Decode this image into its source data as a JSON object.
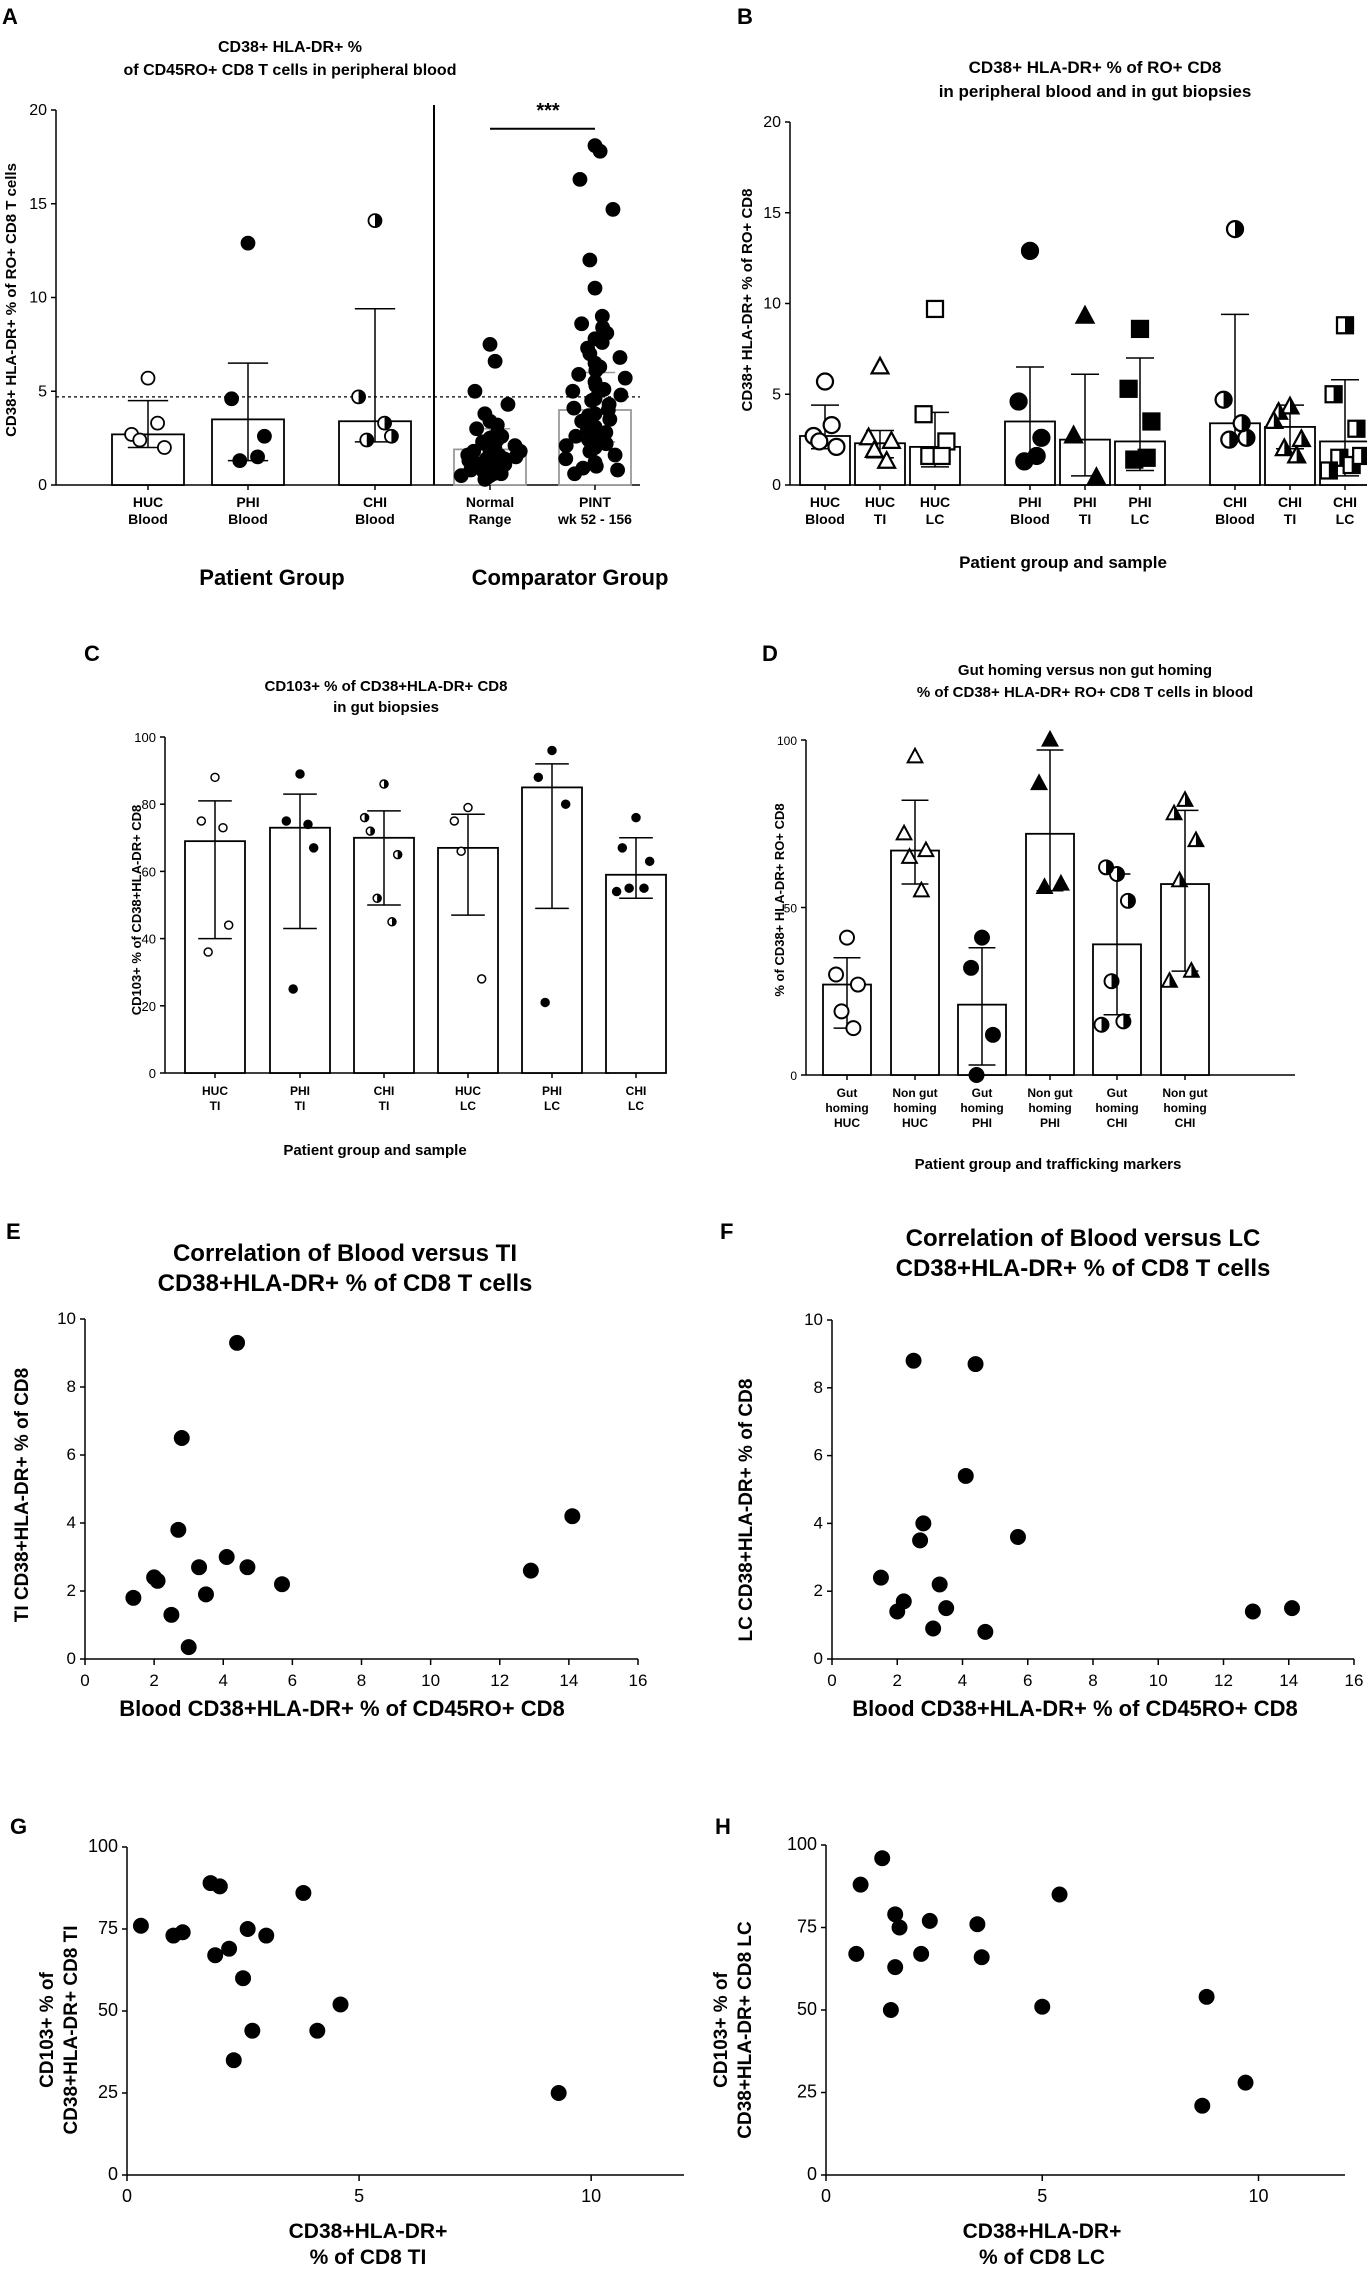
{
  "panels": {
    "A": {
      "letter": "A",
      "title_lines": [
        "CD38+ HLA-DR+ %",
        "of CD45RO+ CD8  T cells in peripheral blood"
      ],
      "ylabel": "CD38+ HLA-DR+ % of RO+ CD8  T cells",
      "sig": "***",
      "group_labels": [
        "Patient Group",
        "Comparator Group"
      ]
    },
    "B": {
      "letter": "B",
      "title_lines": [
        "CD38+ HLA-DR+ % of RO+ CD8",
        "in peripheral blood and in gut biopsies"
      ],
      "ylabel": "CD38+ HLA-DR+ % of RO+ CD8",
      "xlabel": "Patient group and sample"
    },
    "C": {
      "letter": "C",
      "title_lines": [
        "CD103+ % of CD38+HLA-DR+ CD8",
        "in gut biopsies"
      ],
      "ylabel": "CD103+ % of CD38+HLA-DR+ CD8",
      "xlabel": "Patient group and sample"
    },
    "D": {
      "letter": "D",
      "title_lines": [
        "Gut homing versus non gut homing",
        "% of CD38+ HLA-DR+ RO+ CD8 T cells in blood"
      ],
      "ylabel": "% of CD38+ HLA-DR+ RO+ CD8",
      "xlabel": "Patient group and trafficking markers"
    },
    "E": {
      "letter": "E",
      "title_lines": [
        "Correlation of Blood versus TI",
        "CD38+HLA-DR+ % of CD8  T cells"
      ],
      "ylabel": "TI CD38+HLA-DR+ % of CD8",
      "xlabel_lines": [
        "Blood CD38+HLA-DR+ % of CD45RO+ CD8"
      ]
    },
    "F": {
      "letter": "F",
      "title_lines": [
        "Correlation of Blood versus LC",
        "CD38+HLA-DR+ % of CD8  T cells"
      ],
      "ylabel": "LC CD38+HLA-DR+ % of CD8",
      "xlabel_lines": [
        "Blood CD38+HLA-DR+ % of CD45RO+ CD8"
      ]
    },
    "G": {
      "letter": "G",
      "ylabel_lines": [
        "CD103+ % of",
        "CD38+HLA-DR+ CD8 TI"
      ],
      "xlabel_lines": [
        "CD38+HLA-DR+",
        "% of CD8 TI"
      ]
    },
    "H": {
      "letter": "H",
      "ylabel_lines": [
        "CD103+ % of",
        "CD38+HLA-DR+ CD8 LC"
      ],
      "xlabel_lines": [
        "CD38+HLA-DR+",
        "% of CD8 LC"
      ]
    }
  },
  "chart_data": [
    {
      "id": "A",
      "type": "bar",
      "ylim": [
        0,
        20
      ],
      "yticks": [
        0,
        5,
        10,
        15,
        20
      ],
      "reference_line": 4.7,
      "categories": [
        [
          "HUC",
          "Blood"
        ],
        [
          "PHI",
          "Blood"
        ],
        [
          "CHI",
          "Blood"
        ],
        [
          "Normal",
          "Range"
        ],
        [
          "PINT",
          "wk 52 - 156"
        ]
      ],
      "bars": [
        {
          "mean": 2.7,
          "sd_low": 2.0,
          "sd_high": 4.5,
          "marker": "open-circle",
          "points": [
            5.7,
            2.7,
            2.0,
            2.4,
            3.3
          ]
        },
        {
          "mean": 3.5,
          "sd_low": 1.3,
          "sd_high": 6.5,
          "marker": "filled-circle",
          "points": [
            12.9,
            4.6,
            2.6,
            1.3,
            1.5
          ]
        },
        {
          "mean": 3.4,
          "sd_low": 2.3,
          "sd_high": 9.4,
          "marker": "half-circle",
          "points": [
            14.1,
            4.7,
            2.6,
            2.4,
            3.3
          ]
        },
        {
          "mean": 1.9,
          "sd_low": 1.0,
          "sd_high": 3.0,
          "marker": "filled-circle",
          "grey_bar": true,
          "points": [
            7.5,
            6.6,
            5.0,
            4.3,
            3.8,
            3.4,
            3.2,
            3.0,
            2.8,
            2.6,
            2.5,
            2.4,
            2.3,
            2.2,
            2.1,
            2.0,
            2.0,
            1.9,
            1.8,
            1.8,
            1.7,
            1.7,
            1.6,
            1.6,
            1.5,
            1.5,
            1.4,
            1.4,
            1.3,
            1.3,
            1.2,
            1.2,
            1.1,
            1.1,
            1.0,
            1.0,
            0.9,
            0.9,
            0.8,
            0.8,
            0.7,
            0.7,
            0.6,
            0.6,
            0.5,
            0.5,
            0.4,
            0.3
          ]
        },
        {
          "mean": 4.0,
          "sd_low": 2.3,
          "sd_high": 6.0,
          "marker": "filled-circle",
          "grey_bar": true,
          "points": [
            18.1,
            17.8,
            16.3,
            14.7,
            12.0,
            10.5,
            9.0,
            8.6,
            8.4,
            8.1,
            7.8,
            7.6,
            7.3,
            7.0,
            6.8,
            6.5,
            6.3,
            6.1,
            5.9,
            5.7,
            5.5,
            5.3,
            5.1,
            5.0,
            4.8,
            4.6,
            4.5,
            4.3,
            4.1,
            4.0,
            3.8,
            3.7,
            3.5,
            3.4,
            3.2,
            3.1,
            3.0,
            2.8,
            2.7,
            2.6,
            2.5,
            2.4,
            2.3,
            2.2,
            2.1,
            2.0,
            1.9,
            1.8,
            1.6,
            1.4,
            1.2,
            1.0,
            0.9,
            0.8,
            0.6
          ]
        }
      ]
    },
    {
      "id": "B",
      "type": "bar",
      "ylim": [
        0,
        20
      ],
      "yticks": [
        0,
        5,
        10,
        15,
        20
      ],
      "categories": [
        [
          "HUC",
          "Blood"
        ],
        [
          "HUC",
          "TI"
        ],
        [
          "HUC",
          "LC"
        ],
        [
          "PHI",
          "Blood"
        ],
        [
          "PHI",
          "TI"
        ],
        [
          "PHI",
          "LC"
        ],
        [
          "CHI",
          "Blood"
        ],
        [
          "CHI",
          "TI"
        ],
        [
          "CHI",
          "LC"
        ]
      ],
      "bars": [
        {
          "mean": 2.7,
          "sd_low": 2.0,
          "sd_high": 4.4,
          "marker": "open-circle",
          "points": [
            5.7,
            2.7,
            2.1,
            2.4,
            3.3
          ]
        },
        {
          "mean": 2.3,
          "sd_low": 1.5,
          "sd_high": 3.0,
          "marker": "open-triangle",
          "points": [
            6.5,
            2.6,
            2.4,
            1.9,
            1.3
          ]
        },
        {
          "mean": 2.1,
          "sd_low": 1.0,
          "sd_high": 4.0,
          "marker": "open-square",
          "points": [
            9.7,
            3.9,
            2.4,
            1.6,
            1.6
          ]
        },
        {
          "mean": 3.5,
          "sd_low": 1.3,
          "sd_high": 6.5,
          "marker": "filled-circle",
          "points": [
            12.9,
            4.6,
            2.6,
            1.3,
            1.6
          ]
        },
        {
          "mean": 2.5,
          "sd_low": 0.5,
          "sd_high": 6.1,
          "marker": "filled-triangle",
          "points": [
            9.3,
            2.7,
            0.4
          ]
        },
        {
          "mean": 2.4,
          "sd_low": 0.8,
          "sd_high": 7.0,
          "marker": "filled-square",
          "points": [
            8.6,
            5.3,
            3.5,
            1.4,
            1.5
          ]
        },
        {
          "mean": 3.4,
          "sd_low": 2.5,
          "sd_high": 9.4,
          "marker": "half-circle",
          "points": [
            14.1,
            4.7,
            2.6,
            2.5,
            3.4
          ]
        },
        {
          "mean": 3.2,
          "sd_low": 2.0,
          "sd_high": 4.4,
          "marker": "half-triangle",
          "points": [
            4.3,
            4.0,
            2.5,
            2.0,
            1.6,
            3.5
          ]
        },
        {
          "mean": 2.4,
          "sd_low": 0.5,
          "sd_high": 5.8,
          "marker": "half-square",
          "points": [
            8.8,
            5.0,
            3.1,
            1.5,
            1.1,
            0.8,
            1.6
          ]
        }
      ]
    },
    {
      "id": "C",
      "type": "bar",
      "ylim": [
        0,
        100
      ],
      "yticks": [
        0,
        20,
        40,
        60,
        80,
        100
      ],
      "categories": [
        [
          "HUC",
          "TI"
        ],
        [
          "PHI",
          "TI"
        ],
        [
          "CHI",
          "TI"
        ],
        [
          "HUC",
          "LC"
        ],
        [
          "PHI",
          "LC"
        ],
        [
          "CHI",
          "LC"
        ]
      ],
      "bars": [
        {
          "mean": 69,
          "sd_low": 40,
          "sd_high": 81,
          "marker": "small-open-circle",
          "points": [
            88,
            75,
            44,
            36,
            73
          ]
        },
        {
          "mean": 73,
          "sd_low": 43,
          "sd_high": 83,
          "marker": "small-filled-circle",
          "points": [
            89,
            75,
            67,
            25,
            74
          ]
        },
        {
          "mean": 70,
          "sd_low": 50,
          "sd_high": 78,
          "marker": "half-circle",
          "points": [
            86,
            72,
            65,
            52,
            45,
            76
          ]
        },
        {
          "mean": 67,
          "sd_low": 47,
          "sd_high": 77,
          "marker": "small-open-circle",
          "points": [
            79,
            75,
            28,
            66
          ]
        },
        {
          "mean": 85,
          "sd_low": 49,
          "sd_high": 92,
          "marker": "small-filled-circle",
          "points": [
            96,
            88,
            80,
            21
          ]
        },
        {
          "mean": 59,
          "sd_low": 52,
          "sd_high": 70,
          "marker": "small-filled-circle",
          "points": [
            76,
            67,
            63,
            55,
            55,
            54
          ]
        }
      ]
    },
    {
      "id": "D",
      "type": "bar",
      "ylim": [
        0,
        100
      ],
      "yticks": [
        0,
        50,
        100
      ],
      "categories": [
        [
          "Gut",
          "homing",
          "HUC"
        ],
        [
          "Non gut",
          "homing",
          "HUC"
        ],
        [
          "Gut",
          "homing",
          "PHI"
        ],
        [
          "Non gut",
          "homing",
          "PHI"
        ],
        [
          "Gut",
          "homing",
          "CHI"
        ],
        [
          "Non gut",
          "homing",
          "CHI"
        ]
      ],
      "bars": [
        {
          "mean": 27,
          "sd_low": 14,
          "sd_high": 35,
          "marker": "open-circle",
          "points": [
            41,
            30,
            27,
            19,
            14
          ]
        },
        {
          "mean": 67,
          "sd_low": 57,
          "sd_high": 82,
          "marker": "open-triangle",
          "points": [
            95,
            72,
            67,
            65,
            55
          ]
        },
        {
          "mean": 21,
          "sd_low": 3,
          "sd_high": 38,
          "marker": "filled-circle",
          "points": [
            41,
            32,
            12,
            0
          ]
        },
        {
          "mean": 72,
          "sd_low": 55,
          "sd_high": 97,
          "marker": "filled-triangle",
          "points": [
            100,
            87,
            57,
            56
          ]
        },
        {
          "mean": 39,
          "sd_low": 18,
          "sd_high": 60,
          "marker": "half-circle",
          "points": [
            60,
            62,
            52,
            28,
            16,
            15
          ]
        },
        {
          "mean": 57,
          "sd_low": 31,
          "sd_high": 79,
          "marker": "half-triangle",
          "points": [
            82,
            78,
            70,
            58,
            31,
            28
          ]
        }
      ]
    },
    {
      "id": "E",
      "type": "scatter",
      "xlim": [
        0,
        16
      ],
      "ylim": [
        0,
        10
      ],
      "xticks": [
        0,
        2,
        4,
        6,
        8,
        10,
        12,
        14,
        16
      ],
      "yticks": [
        0,
        2,
        4,
        6,
        8,
        10
      ],
      "x": [
        1.4,
        2.0,
        2.1,
        2.5,
        2.7,
        2.8,
        3.0,
        3.3,
        3.5,
        4.1,
        4.4,
        4.7,
        5.7,
        12.9,
        14.1
      ],
      "y": [
        1.8,
        2.4,
        2.3,
        1.3,
        3.8,
        6.5,
        0.35,
        2.7,
        1.9,
        3.0,
        9.3,
        2.7,
        2.2,
        2.6,
        4.2
      ]
    },
    {
      "id": "F",
      "type": "scatter",
      "xlim": [
        0,
        16
      ],
      "ylim": [
        0,
        10
      ],
      "xticks": [
        0,
        2,
        4,
        6,
        8,
        10,
        12,
        14,
        16
      ],
      "yticks": [
        0,
        2,
        4,
        6,
        8,
        10
      ],
      "x": [
        1.5,
        2.0,
        2.2,
        2.5,
        2.7,
        2.8,
        3.1,
        3.3,
        3.5,
        4.1,
        4.4,
        4.7,
        5.7,
        12.9,
        14.1
      ],
      "y": [
        2.4,
        1.4,
        1.7,
        8.8,
        3.5,
        4.0,
        0.9,
        2.2,
        1.5,
        5.4,
        8.7,
        0.8,
        3.6,
        1.4,
        1.5
      ]
    },
    {
      "id": "G",
      "type": "scatter",
      "xlim": [
        0,
        12
      ],
      "ylim": [
        0,
        100
      ],
      "xticks": [
        0,
        5,
        10
      ],
      "yticks": [
        0,
        25,
        50,
        75,
        100
      ],
      "x": [
        0.3,
        1.0,
        1.2,
        1.8,
        2.0,
        1.9,
        2.2,
        2.3,
        2.5,
        2.6,
        2.7,
        3.0,
        3.8,
        4.1,
        4.6,
        9.3
      ],
      "y": [
        76,
        73,
        74,
        89,
        88,
        67,
        69,
        35,
        60,
        75,
        44,
        73,
        86,
        44,
        52,
        25
      ]
    },
    {
      "id": "H",
      "type": "scatter",
      "xlim": [
        0,
        12
      ],
      "ylim": [
        0,
        100
      ],
      "xticks": [
        0,
        5,
        10
      ],
      "yticks": [
        0,
        25,
        50,
        75,
        100
      ],
      "x": [
        0.7,
        0.8,
        1.3,
        1.5,
        1.6,
        1.7,
        1.6,
        2.2,
        2.4,
        3.5,
        3.6,
        5.0,
        5.4,
        8.7,
        8.8,
        9.7
      ],
      "y": [
        67,
        88,
        96,
        50,
        63,
        75,
        79,
        67,
        77,
        76,
        66,
        51,
        85,
        21,
        54,
        28
      ]
    }
  ]
}
